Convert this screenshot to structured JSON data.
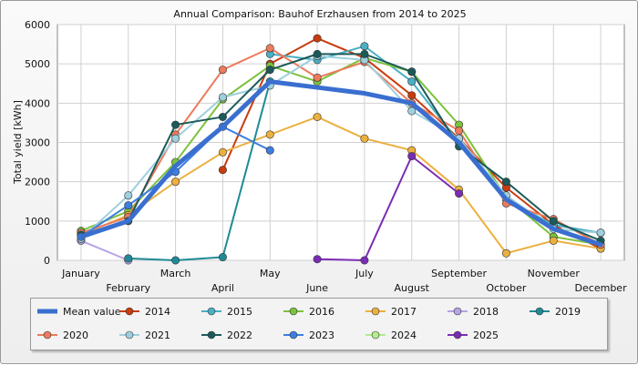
{
  "chart_data": {
    "type": "line",
    "title": "Annual Comparison: Bauhof Erzhausen from 2014 to 2025",
    "ylabel": "Total yield [kWh]",
    "xlabel": "",
    "ylim": [
      0,
      6000
    ],
    "yticks": [
      0,
      1000,
      2000,
      3000,
      4000,
      5000,
      6000
    ],
    "grid": true,
    "legend_position": "bottom",
    "categories": [
      "January",
      "February",
      "March",
      "April",
      "May",
      "June",
      "July",
      "August",
      "September",
      "October",
      "November",
      "December"
    ],
    "series": [
      {
        "name": "Mean value",
        "color": "#3a6fd0",
        "values": [
          600,
          1000,
          2400,
          3400,
          4550,
          4400,
          4250,
          4000,
          3000,
          1550,
          800,
          400
        ]
      },
      {
        "name": "2014",
        "color": "#c83c0e",
        "values": [
          null,
          null,
          null,
          2300,
          5000,
          5650,
          5150,
          4200,
          3100,
          1850,
          900,
          300
        ]
      },
      {
        "name": "2015",
        "color": "#4ab0c4",
        "values": [
          null,
          null,
          null,
          null,
          5250,
          5100,
          5450,
          4550,
          3000,
          1550,
          900,
          700
        ]
      },
      {
        "name": "2016",
        "color": "#7cc23c",
        "values": [
          750,
          1250,
          2500,
          4100,
          4950,
          4550,
          5150,
          4800,
          3450,
          1600,
          600,
          400
        ]
      },
      {
        "name": "2017",
        "color": "#ecb040",
        "values": [
          650,
          1150,
          2000,
          2750,
          3200,
          3650,
          3100,
          2800,
          1800,
          180,
          500,
          300
        ]
      },
      {
        "name": "2018",
        "color": "#b7a4e6",
        "values": [
          500,
          0,
          null,
          null,
          null,
          null,
          null,
          null,
          null,
          null,
          null,
          null
        ]
      },
      {
        "name": "2019",
        "color": "#1f8a96",
        "values": [
          null,
          50,
          0,
          80,
          4550,
          null,
          null,
          null,
          null,
          null,
          null,
          null
        ]
      },
      {
        "name": "2020",
        "color": "#ec7b5c",
        "values": [
          700,
          1100,
          3200,
          4850,
          5400,
          4650,
          5050,
          4000,
          3300,
          1450,
          1050,
          400
        ]
      },
      {
        "name": "2021",
        "color": "#9ecfde",
        "values": [
          550,
          1650,
          3100,
          4150,
          4450,
          5200,
          5100,
          3800,
          3100,
          1650,
          800,
          700
        ]
      },
      {
        "name": "2022",
        "color": "#1c5a5a",
        "values": [
          650,
          1000,
          3450,
          3650,
          4850,
          5250,
          5250,
          4800,
          2900,
          2000,
          1000,
          500
        ]
      },
      {
        "name": "2023",
        "color": "#3c7ee0",
        "values": [
          600,
          1400,
          2250,
          3400,
          2800,
          null,
          null,
          null,
          null,
          null,
          null,
          null
        ]
      },
      {
        "name": "2024",
        "color": "#b4ec8c",
        "values": [
          null,
          null,
          null,
          null,
          null,
          null,
          null,
          null,
          null,
          null,
          null,
          null
        ]
      },
      {
        "name": "2025",
        "color": "#7a2cb4",
        "values": [
          null,
          null,
          null,
          null,
          null,
          30,
          0,
          2650,
          1700,
          null,
          null,
          null
        ]
      }
    ]
  }
}
